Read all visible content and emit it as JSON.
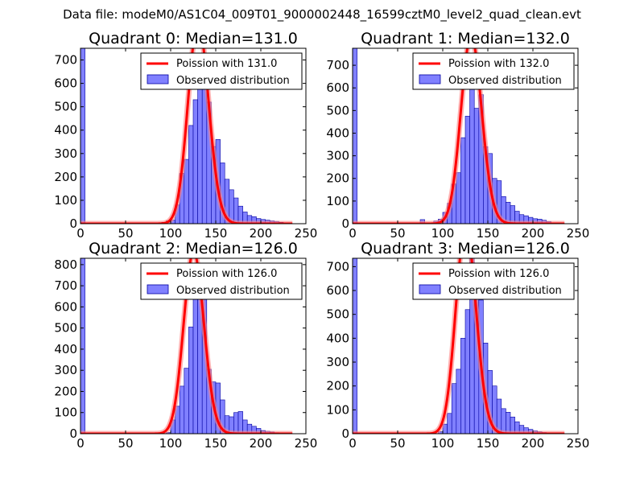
{
  "figure_title": "Data file: modeM0/AS1C04_009T01_9000002448_16599cztM0_level2_quad_clean.evt",
  "colors": {
    "bar_fill": "#8080ff",
    "bar_edge": "#0000a0",
    "poisson_line": "#ff0000",
    "poisson_faint": "#ff8080",
    "axis": "#000000"
  },
  "chart_data": [
    {
      "type": "bar",
      "title": "Quadrant 0: Median=131.0",
      "median": 131.0,
      "xlim": [
        0,
        250
      ],
      "ylim": [
        0,
        750
      ],
      "xticks": [
        "0",
        "50",
        "100",
        "150",
        "200",
        "250"
      ],
      "yticks": [
        "0",
        "100",
        "200",
        "300",
        "400",
        "500",
        "600",
        "700"
      ],
      "ytick_values": [
        0,
        100,
        200,
        300,
        400,
        500,
        600,
        700
      ],
      "xtick_values": [
        0,
        50,
        100,
        150,
        200,
        250
      ],
      "legend": {
        "position": "top-right",
        "entries": [
          "Poission with 131.0",
          "Observed distribution"
        ]
      },
      "bins": {
        "start": 0,
        "width": 5
      },
      "values": [
        750,
        0,
        0,
        0,
        0,
        0,
        0,
        0,
        0,
        0,
        0,
        0,
        0,
        0,
        0,
        0,
        0,
        0,
        6,
        12,
        15,
        80,
        215,
        275,
        420,
        530,
        615,
        575,
        520,
        330,
        360,
        260,
        190,
        145,
        110,
        75,
        50,
        35,
        30,
        22,
        18,
        15,
        12,
        10,
        6,
        0
      ],
      "poisson_scale": 5
    },
    {
      "type": "bar",
      "title": "Quadrant 1: Median=132.0",
      "median": 132.0,
      "xlim": [
        0,
        250
      ],
      "ylim": [
        0,
        775
      ],
      "xticks": [
        "0",
        "50",
        "100",
        "150",
        "200",
        "250"
      ],
      "yticks": [
        "0",
        "100",
        "200",
        "300",
        "400",
        "500",
        "600",
        "700"
      ],
      "ytick_values": [
        0,
        100,
        200,
        300,
        400,
        500,
        600,
        700
      ],
      "xtick_values": [
        0,
        50,
        100,
        150,
        200,
        250
      ],
      "legend": {
        "position": "top-right",
        "entries": [
          "Poission with 132.0",
          "Observed distribution"
        ]
      },
      "bins": {
        "start": 0,
        "width": 5
      },
      "values": [
        775,
        0,
        0,
        0,
        0,
        0,
        0,
        0,
        0,
        0,
        0,
        0,
        0,
        0,
        0,
        18,
        0,
        0,
        12,
        20,
        50,
        90,
        175,
        225,
        380,
        475,
        690,
        510,
        570,
        340,
        310,
        200,
        190,
        120,
        95,
        80,
        55,
        40,
        35,
        28,
        22,
        20,
        15,
        10,
        0,
        0
      ],
      "poisson_scale": 5
    },
    {
      "type": "bar",
      "title": "Quadrant 2: Median=126.0",
      "median": 126.0,
      "xlim": [
        0,
        250
      ],
      "ylim": [
        0,
        830
      ],
      "xticks": [
        "0",
        "50",
        "100",
        "150",
        "200",
        "250"
      ],
      "yticks": [
        "0",
        "100",
        "200",
        "300",
        "400",
        "500",
        "600",
        "700",
        "800"
      ],
      "ytick_values": [
        0,
        100,
        200,
        300,
        400,
        500,
        600,
        700,
        800
      ],
      "xtick_values": [
        0,
        50,
        100,
        150,
        200,
        250
      ],
      "legend": {
        "position": "top-right",
        "entries": [
          "Poission with 126.0",
          "Observed distribution"
        ]
      },
      "bins": {
        "start": 0,
        "width": 5
      },
      "values": [
        830,
        0,
        0,
        0,
        0,
        0,
        0,
        0,
        0,
        0,
        0,
        0,
        0,
        0,
        0,
        0,
        0,
        0,
        0,
        5,
        65,
        130,
        225,
        310,
        505,
        650,
        790,
        635,
        305,
        245,
        240,
        160,
        85,
        80,
        100,
        105,
        65,
        45,
        35,
        25,
        15,
        12,
        8,
        5,
        0,
        0
      ],
      "poisson_scale": 5
    },
    {
      "type": "bar",
      "title": "Quadrant 3: Median=126.0",
      "median": 126.0,
      "xlim": [
        0,
        250
      ],
      "ylim": [
        0,
        735
      ],
      "xticks": [
        "0",
        "50",
        "100",
        "150",
        "200",
        "250"
      ],
      "yticks": [
        "0",
        "100",
        "200",
        "300",
        "400",
        "500",
        "600",
        "700"
      ],
      "ytick_values": [
        0,
        100,
        200,
        300,
        400,
        500,
        600,
        700
      ],
      "xtick_values": [
        0,
        50,
        100,
        150,
        200,
        250
      ],
      "legend": {
        "position": "top-right",
        "entries": [
          "Poission with 126.0",
          "Observed distribution"
        ]
      },
      "bins": {
        "start": 0,
        "width": 5
      },
      "values": [
        735,
        0,
        0,
        0,
        0,
        0,
        0,
        0,
        0,
        0,
        0,
        0,
        0,
        0,
        0,
        0,
        0,
        0,
        0,
        8,
        40,
        85,
        210,
        270,
        400,
        520,
        750,
        625,
        560,
        380,
        265,
        200,
        145,
        105,
        90,
        70,
        50,
        35,
        25,
        18,
        12,
        8,
        5,
        0,
        0,
        0
      ],
      "poisson_scale": 5
    }
  ]
}
